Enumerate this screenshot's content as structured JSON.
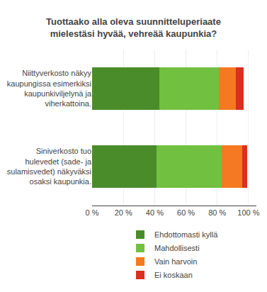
{
  "chart_data": {
    "type": "bar",
    "orientation": "horizontal",
    "stacked": true,
    "title": "Tuottaako alla oleva suunnitteluperiaate\nmielestäsi hyvää, vehreää kaupunkia?",
    "categories": [
      "Niittyverkosto näkyy\nkaupungissa esimerkiksi\nkaupunkiviljelynä ja\nviherkattoina.",
      "Siniverkosto tuo\nhulevedet (sade- ja\nsulamisvedet) näkyväksi\nosaksi kaupunkia."
    ],
    "series": [
      {
        "name": "Ehdottomasti kyllä",
        "color": "#4a8c2a",
        "values": [
          43,
          41
        ]
      },
      {
        "name": "Mahdollisesti",
        "color": "#72c040",
        "values": [
          38,
          42
        ]
      },
      {
        "name": "Vain harvoin",
        "color": "#f47920",
        "values": [
          11,
          13
        ]
      },
      {
        "name": "Ei koskaan",
        "color": "#d93020",
        "values": [
          5,
          3
        ]
      }
    ],
    "xlim": [
      0,
      105
    ],
    "xticks": [
      {
        "value": 0,
        "label": "0 %"
      },
      {
        "value": 20,
        "label": "20 %"
      },
      {
        "value": 40,
        "label": "40 %"
      },
      {
        "value": 60,
        "label": "60 %"
      },
      {
        "value": 80,
        "label": "80 %"
      },
      {
        "value": 100,
        "label": "100 %"
      }
    ],
    "grid": true,
    "legend": "bottom"
  }
}
